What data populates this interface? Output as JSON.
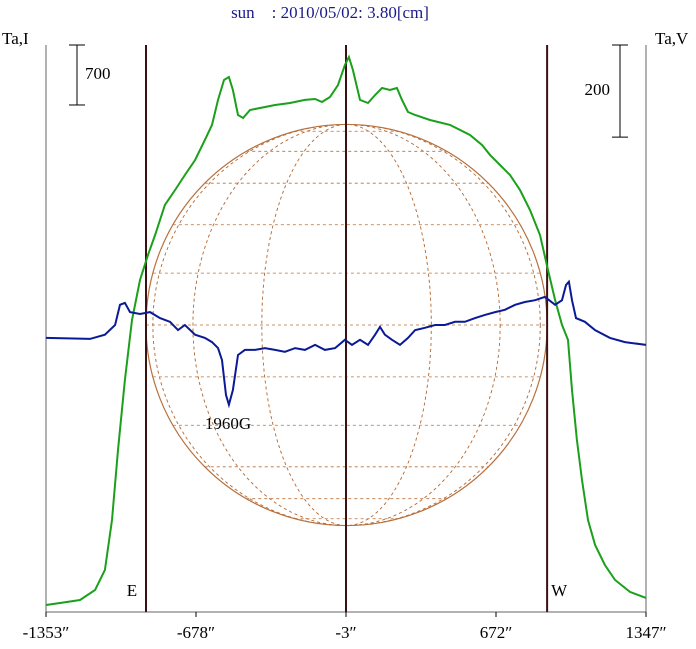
{
  "chart_data": {
    "type": "line",
    "title": "sun    : 2010/05/02: 3.80[cm]",
    "ylabel": "Ta,I",
    "y2label": "Ta,V",
    "annotation": "1960G",
    "xlim": [
      -1353,
      1347
    ],
    "xticks": [
      {
        "value": -1353,
        "label": "-1353″"
      },
      {
        "value": -678,
        "label": "-678″"
      },
      {
        "value": -3,
        "label": "-3″"
      },
      {
        "value": 672,
        "label": "672″"
      },
      {
        "value": 1347,
        "label": "1347″"
      }
    ],
    "ylim": [
      -82,
      6535
    ],
    "y2lim": [
      -595,
      636
    ],
    "center_x": -3,
    "limbs": [
      {
        "label": "E",
        "x": -903
      },
      {
        "label": "W",
        "x": 902
      }
    ],
    "scale_bars": [
      {
        "value": 700,
        "axis": "y"
      },
      {
        "value": 200,
        "axis": "y2"
      }
    ],
    "series": [
      {
        "color": "#1aa01a",
        "axis": "y",
        "x": [
          -1353,
          -1290,
          -1200,
          -1132,
          -1088,
          -1056,
          -1029,
          -998,
          -966,
          -930,
          -894,
          -862,
          -818,
          -772,
          -728,
          -682,
          -638,
          -606,
          -579,
          -552,
          -530,
          -512,
          -489,
          -466,
          -435,
          -390,
          -322,
          -255,
          -188,
          -142,
          -111,
          -75,
          -39,
          -8,
          10,
          28,
          60,
          96,
          128,
          159,
          195,
          226,
          249,
          276,
          308,
          375,
          465,
          555,
          609,
          645,
          690,
          735,
          780,
          825,
          870,
          906,
          938,
          969,
          996,
          1014,
          1036,
          1059,
          1086,
          1118,
          1162,
          1208,
          1275,
          1347
        ],
        "values": [
          0,
          23,
          58,
          175,
          408,
          992,
          1809,
          2626,
          3326,
          3793,
          4085,
          4318,
          4668,
          4843,
          5018,
          5193,
          5427,
          5602,
          5893,
          6127,
          6162,
          6010,
          5718,
          5683,
          5777,
          5800,
          5835,
          5858,
          5894,
          5905,
          5870,
          5928,
          6068,
          6302,
          6395,
          6243,
          5894,
          5858,
          5952,
          6033,
          6010,
          6033,
          5894,
          5753,
          5718,
          5660,
          5602,
          5485,
          5368,
          5252,
          5135,
          5018,
          4843,
          4610,
          4318,
          3909,
          3559,
          3268,
          3093,
          2509,
          1926,
          1459,
          992,
          700,
          467,
          292,
          152,
          82
        ]
      },
      {
        "color": "#0a1a96",
        "axis": "y2",
        "x": [
          -1353,
          -1155,
          -1088,
          -1042,
          -1020,
          -998,
          -975,
          -930,
          -885,
          -840,
          -795,
          -759,
          -728,
          -682,
          -638,
          -606,
          -579,
          -561,
          -543,
          -530,
          -512,
          -489,
          -458,
          -412,
          -368,
          -322,
          -278,
          -232,
          -188,
          -142,
          -98,
          -52,
          -8,
          24,
          60,
          96,
          128,
          150,
          172,
          204,
          240,
          276,
          308,
          352,
          398,
          442,
          488,
          532,
          578,
          622,
          668,
          712,
          758,
          802,
          848,
          892,
          938,
          969,
          987,
          1000,
          1014,
          1032,
          1072,
          1118,
          1185,
          1252,
          1347
        ],
        "values": [
          0,
          -2,
          7,
          28,
          72,
          76,
          56,
          52,
          56,
          43,
          35,
          17,
          28,
          7,
          0,
          -9,
          -22,
          -48,
          -124,
          -145,
          -113,
          -37,
          -26,
          -26,
          -22,
          -26,
          -30,
          -22,
          -26,
          -15,
          -26,
          -22,
          -4,
          -15,
          -4,
          -15,
          7,
          24,
          7,
          -4,
          -15,
          0,
          17,
          22,
          28,
          28,
          35,
          35,
          43,
          50,
          56,
          61,
          72,
          78,
          82,
          89,
          72,
          82,
          115,
          122,
          82,
          43,
          35,
          17,
          0,
          -9,
          -15
        ]
      }
    ]
  }
}
